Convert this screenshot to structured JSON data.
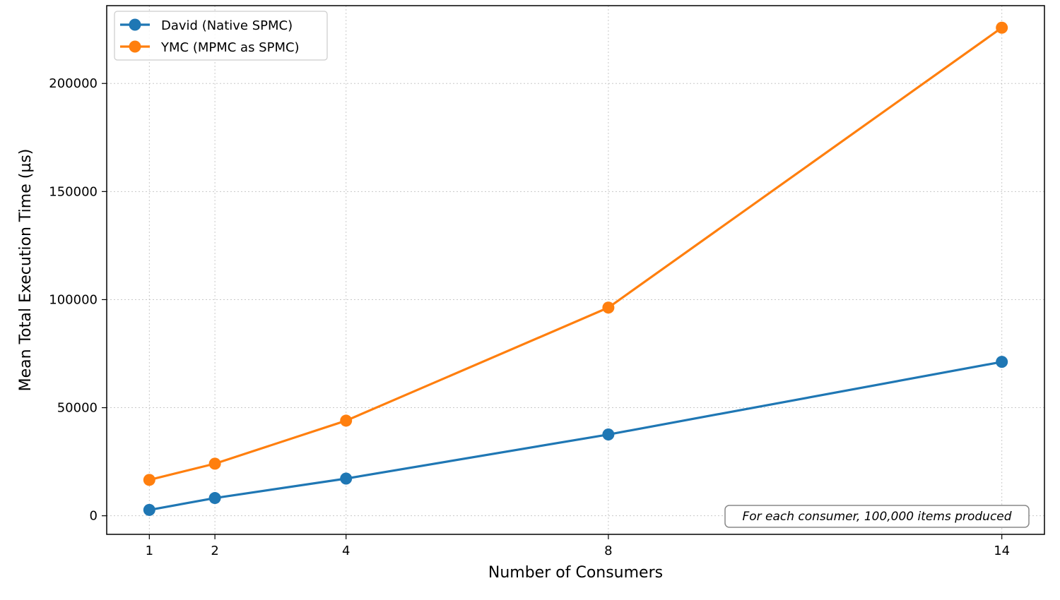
{
  "chart_data": {
    "type": "line",
    "xlabel": "Number of Consumers",
    "ylabel": "Mean Total Execution Time (µs)",
    "x": [
      1,
      2,
      4,
      8,
      14
    ],
    "x_ticks": [
      1,
      2,
      4,
      8,
      14
    ],
    "y_ticks": [
      0,
      50000,
      100000,
      150000,
      200000
    ],
    "xlim": [
      0.35,
      14.65
    ],
    "ylim": [
      -8600,
      236000
    ],
    "grid": true,
    "legend_position": "top-left",
    "series": [
      {
        "name": "David (Native SPMC)",
        "color": "#1f77b4",
        "values": [
          2700,
          8200,
          17200,
          37600,
          71200
        ]
      },
      {
        "name": "YMC (MPMC as SPMC)",
        "color": "#ff7f0e",
        "values": [
          16600,
          24100,
          44000,
          96300,
          225800
        ]
      }
    ],
    "annotation": "For each consumer, 100,000 items produced"
  }
}
